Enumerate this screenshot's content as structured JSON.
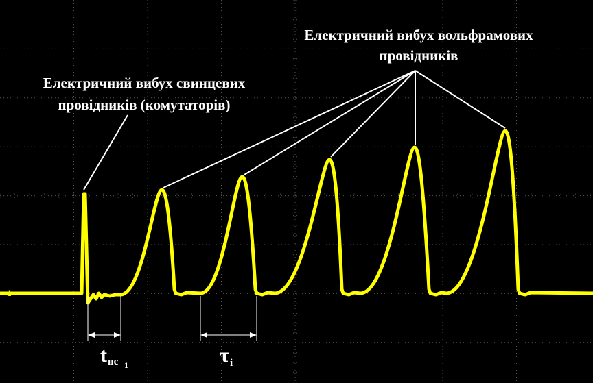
{
  "annotations": {
    "tungsten": [
      "Електричний вибух вольфрамових",
      "провідників"
    ],
    "lead": [
      "Електричний вибух свинцевих",
      "провідників (комутаторів)"
    ]
  },
  "labels": {
    "t_pc": {
      "symbol": "t",
      "sub": "пс",
      "subsub": "1"
    },
    "tau": {
      "symbol": "τ",
      "sub": "i"
    }
  },
  "channel_marker": "1"
}
